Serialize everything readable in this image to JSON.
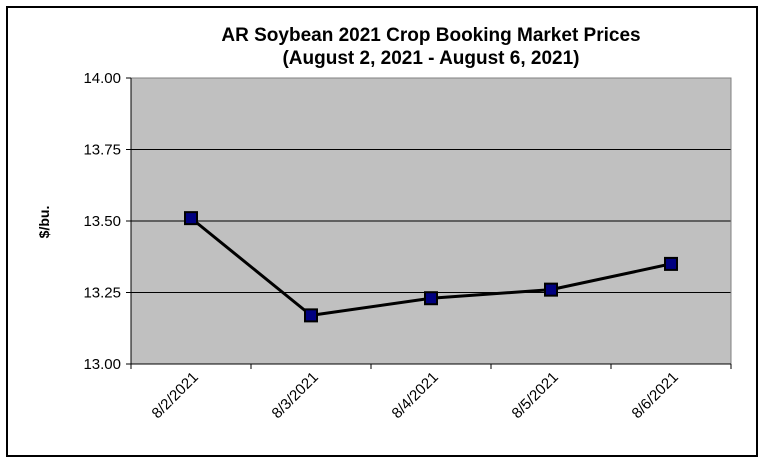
{
  "chart_data": {
    "type": "line",
    "title": "AR Soybean 2021 Crop Booking Market Prices",
    "subtitle": "(August 2, 2021 - August 6, 2021)",
    "xlabel": "",
    "ylabel": "$/bu.",
    "categories": [
      "8/2/2021",
      "8/3/2021",
      "8/4/2021",
      "8/5/2021",
      "8/6/2021"
    ],
    "series": [
      {
        "values": [
          13.51,
          13.17,
          13.23,
          13.26,
          13.35
        ]
      }
    ],
    "ylim": [
      13.0,
      14.0
    ],
    "yticks": [
      "13.00",
      "13.25",
      "13.50",
      "13.75",
      "14.00"
    ],
    "grid": true,
    "legend": "none",
    "colors": {
      "plot_background": "#c0c0c0",
      "line": "#000000",
      "marker_fill": "#000080",
      "gridline": "#000000"
    }
  }
}
